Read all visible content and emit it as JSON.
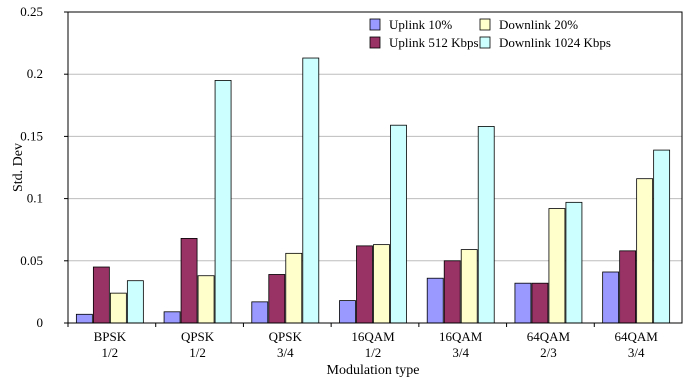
{
  "chart_data": {
    "type": "bar",
    "categories": [
      [
        "BPSK",
        "1/2"
      ],
      [
        "QPSK",
        "1/2"
      ],
      [
        "QPSK",
        "3/4"
      ],
      [
        "16QAM",
        "1/2"
      ],
      [
        "16QAM",
        "3/4"
      ],
      [
        "64QAM",
        "2/3"
      ],
      [
        "64QAM",
        "3/4"
      ]
    ],
    "series": [
      {
        "name": "Uplink 10%",
        "color": "#9999ff",
        "values": [
          0.007,
          0.009,
          0.017,
          0.018,
          0.036,
          0.032,
          0.041
        ]
      },
      {
        "name": "Uplink 512 Kbps",
        "color": "#993366",
        "values": [
          0.045,
          0.068,
          0.039,
          0.062,
          0.05,
          0.032,
          0.058
        ]
      },
      {
        "name": "Downlink 20%",
        "color": "#ffffcc",
        "values": [
          0.024,
          0.038,
          0.056,
          0.063,
          0.059,
          0.092,
          0.116
        ]
      },
      {
        "name": "Downlink 1024 Kbps",
        "color": "#ccffff",
        "values": [
          0.034,
          0.195,
          0.213,
          0.159,
          0.158,
          0.097,
          0.139
        ]
      }
    ],
    "title": "",
    "xlabel": "Modulation type",
    "ylabel": "Std. Dev",
    "ylim": [
      0,
      0.25
    ],
    "yticks": [
      "0",
      "0.05",
      "0.1",
      "0.15",
      "0.2",
      "0.25"
    ],
    "grid": "horizontal",
    "legend_position": "top-right"
  }
}
